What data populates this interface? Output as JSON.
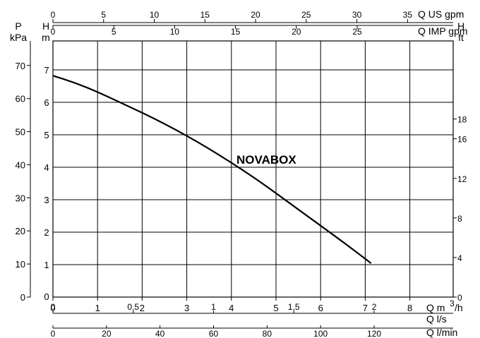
{
  "chart_data": {
    "type": "line",
    "title": "",
    "grid": true,
    "x": {
      "label": "Q",
      "unit": "m³/h",
      "range": [
        0,
        9
      ],
      "ticks": [
        0,
        1,
        2,
        3,
        4,
        5,
        6,
        7,
        8
      ]
    },
    "y": {
      "label": "H",
      "unit": "m",
      "range": [
        0,
        7.5
      ],
      "ticks": [
        1,
        2,
        3,
        4,
        5,
        6,
        7
      ]
    },
    "series": [
      {
        "name": "NOVABOX",
        "x": [
          0,
          0.5,
          1,
          1.5,
          2,
          2.5,
          3,
          3.5,
          4,
          4.5,
          5,
          5.5,
          6,
          6.5,
          7,
          7.13
        ],
        "y": [
          6.82,
          6.6,
          6.32,
          6.0,
          5.68,
          5.34,
          4.97,
          4.57,
          4.14,
          3.69,
          3.2,
          2.7,
          2.2,
          1.7,
          1.18,
          1.04
        ]
      }
    ],
    "secondary_axes": {
      "top1": {
        "label": "Q US gpm",
        "ticks": [
          "0",
          "5",
          "10",
          "15",
          "20",
          "25",
          "30",
          "35"
        ]
      },
      "top2": {
        "label": "Q IMP gpm",
        "ticks": [
          "0",
          "5",
          "10",
          "15",
          "20",
          "25"
        ]
      },
      "bottom2": {
        "label": "Q l/s",
        "ticks": [
          "0",
          "0,5",
          "1",
          "1,5",
          "2"
        ]
      },
      "bottom3": {
        "label": "Q l/min",
        "ticks": [
          "0",
          "20",
          "40",
          "60",
          "80",
          "100",
          "120"
        ]
      },
      "left_outer": {
        "label_top": "P",
        "label_bottom": "kPa",
        "ticks": [
          "0",
          "10",
          "20",
          "30",
          "40",
          "50",
          "60",
          "70"
        ]
      },
      "left_inner": {
        "label_top": "H",
        "label_bottom": "m"
      },
      "right": {
        "label_top": "H",
        "label_bottom": "ft",
        "ticks": [
          "0",
          "4",
          "8",
          "12",
          "16",
          "18"
        ]
      }
    },
    "annotation": "NOVABOX"
  }
}
